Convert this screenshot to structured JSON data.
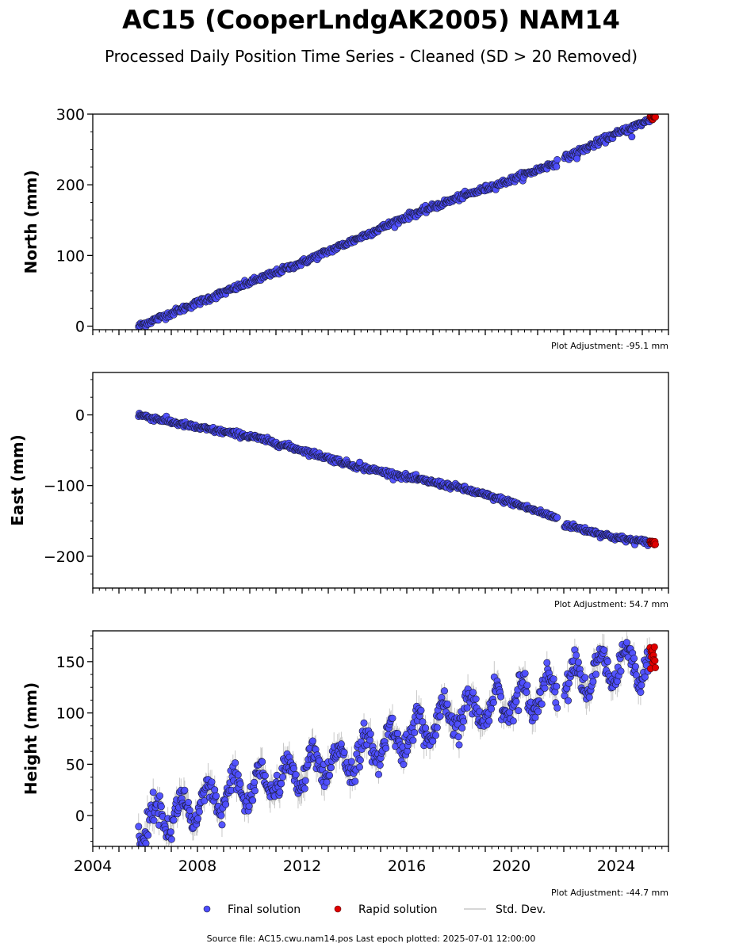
{
  "title": "AC15 (CooperLndgAK2005) NAM14",
  "subtitle": "Processed Daily Position Time Series - Cleaned (SD > 20 Removed)",
  "footer": "Source file: AC15.cwu.nam14.pos  Last epoch plotted: 2025-07-01 12:00:00",
  "colors": {
    "final": "#4d4dff",
    "final_edge": "#1a1a33",
    "rapid": "#e00000",
    "stddev": "#c8c8c8",
    "axis": "#000000"
  },
  "legend": {
    "placement": "bottom-center",
    "final_label": "Final solution",
    "rapid_label": "Rapid solution",
    "stddev_label": "Std. Dev."
  },
  "chart_data": [
    {
      "type": "scatter",
      "ylabel": "North (mm)",
      "adjustment_label": "Plot Adjustment: -95.1 mm",
      "xlim": [
        2004.0,
        2026.0
      ],
      "ylim": [
        -5,
        300
      ],
      "yticks": [
        0,
        100,
        200,
        300
      ],
      "ytick_labels": [
        "0",
        "100",
        "200",
        "300"
      ],
      "series": [
        {
          "name": "Final solution",
          "trend": [
            [
              2005.75,
              0
            ],
            [
              2008.0,
              33
            ],
            [
              2010.0,
              62
            ],
            [
              2012.0,
              90
            ],
            [
              2014.0,
              122
            ],
            [
              2016.0,
              155
            ],
            [
              2018.0,
              182
            ],
            [
              2020.0,
              207
            ],
            [
              2021.75,
              232
            ],
            [
              2022.0,
              237
            ],
            [
              2024.0,
              272
            ],
            [
              2025.3,
              292
            ]
          ],
          "gap": [
            2021.75,
            2022.0
          ],
          "scatter_sd": 2.2,
          "outliers": [
            [
              2024.6,
              268
            ],
            [
              2022.5,
              237
            ]
          ]
        },
        {
          "name": "Rapid solution",
          "range": [
            2025.3,
            2025.5
          ],
          "values_range": [
            292,
            298
          ]
        }
      ]
    },
    {
      "type": "scatter",
      "ylabel": "East (mm)",
      "adjustment_label": "Plot Adjustment: 54.7 mm",
      "xlim": [
        2004.0,
        2026.0
      ],
      "ylim": [
        -245,
        60
      ],
      "yticks": [
        0,
        -100,
        -200
      ],
      "ytick_labels": [
        "0",
        "−100",
        "−200"
      ],
      "series": [
        {
          "name": "Final solution",
          "trend": [
            [
              2005.75,
              0
            ],
            [
              2008.0,
              -18
            ],
            [
              2010.0,
              -30
            ],
            [
              2012.0,
              -50
            ],
            [
              2014.0,
              -72
            ],
            [
              2016.0,
              -88
            ],
            [
              2018.0,
              -103
            ],
            [
              2020.0,
              -124
            ],
            [
              2021.75,
              -146
            ],
            [
              2022.0,
              -155
            ],
            [
              2024.0,
              -174
            ],
            [
              2025.3,
              -181
            ]
          ],
          "gap": [
            2021.75,
            2022.0
          ],
          "scatter_sd": 2.0,
          "outliers": [
            [
              2014.2,
              -67
            ]
          ]
        },
        {
          "name": "Rapid solution",
          "range": [
            2025.3,
            2025.5
          ],
          "values_range": [
            -184,
            -178
          ]
        }
      ]
    },
    {
      "type": "scatter",
      "ylabel": "Height (mm)",
      "adjustment_label": "Plot Adjustment: -44.7 mm",
      "xlim": [
        2004.0,
        2026.0
      ],
      "ylim": [
        -30,
        180
      ],
      "yticks": [
        0,
        50,
        100,
        150
      ],
      "ytick_labels": [
        "0",
        "50",
        "100",
        "150"
      ],
      "xticks": [
        2004,
        2008,
        2012,
        2016,
        2020,
        2024
      ],
      "xtick_labels": [
        "2004",
        "2008",
        "2012",
        "2016",
        "2020",
        "2024"
      ],
      "series": [
        {
          "name": "Final solution",
          "trend": [
            [
              2005.75,
              -8
            ],
            [
              2008.0,
              8
            ],
            [
              2010.0,
              28
            ],
            [
              2012.0,
              42
            ],
            [
              2014.0,
              58
            ],
            [
              2016.0,
              78
            ],
            [
              2018.0,
              98
            ],
            [
              2020.0,
              112
            ],
            [
              2021.75,
              125
            ],
            [
              2022.0,
              128
            ],
            [
              2024.0,
              145
            ],
            [
              2025.3,
              150
            ]
          ],
          "gap": [
            2021.75,
            2022.0
          ],
          "seasonal_amplitude": 15,
          "scatter_sd": 6.5
        },
        {
          "name": "Rapid solution",
          "range": [
            2025.3,
            2025.5
          ],
          "values_range": [
            142,
            165
          ]
        }
      ]
    }
  ]
}
